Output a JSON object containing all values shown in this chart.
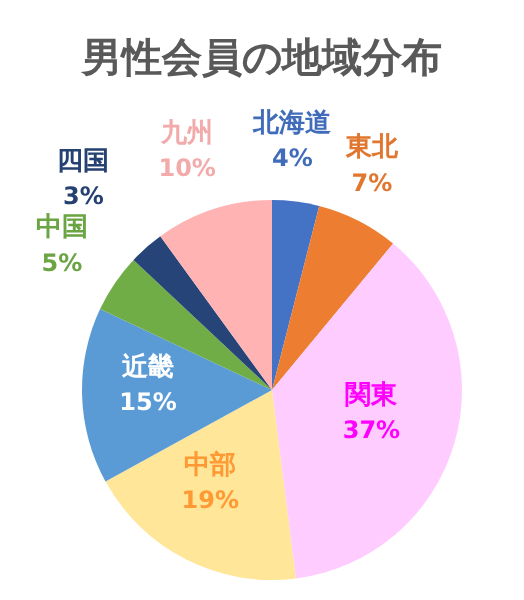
{
  "chart_data": {
    "type": "pie",
    "title": "男性会員の地域分布",
    "categories": [
      "北海道",
      "東北",
      "関東",
      "中部",
      "近畿",
      "中国",
      "四国",
      "九州"
    ],
    "values": [
      4,
      7,
      37,
      19,
      15,
      5,
      3,
      10
    ],
    "value_labels": [
      "4%",
      "7%",
      "37%",
      "19%",
      "15%",
      "5%",
      "3%",
      "10%"
    ],
    "colors": [
      "#4472c4",
      "#ed7d31",
      "#ffccff",
      "#ffe699",
      "#5b9bd5",
      "#70ad47",
      "#264478",
      "#ffb3b3"
    ],
    "legend": false
  }
}
